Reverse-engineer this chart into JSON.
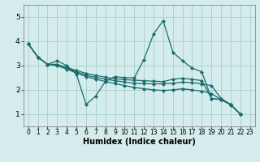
{
  "xlabel": "Humidex (Indice chaleur)",
  "bg_color": "#d4ecec",
  "grid_color": "#a8cccc",
  "line_color": "#1a6b6b",
  "xlim": [
    -0.5,
    23.5
  ],
  "ylim": [
    0.5,
    5.5
  ],
  "xticks": [
    0,
    1,
    2,
    3,
    4,
    5,
    6,
    7,
    8,
    9,
    10,
    11,
    12,
    13,
    14,
    15,
    16,
    17,
    18,
    19,
    20,
    21,
    22,
    23
  ],
  "yticks": [
    1,
    2,
    3,
    4,
    5
  ],
  "lines": [
    {
      "x": [
        0,
        1,
        2,
        3,
        4,
        5,
        6,
        7,
        8,
        9,
        10,
        11,
        12,
        13,
        14,
        15,
        16,
        17,
        18,
        19,
        20,
        21,
        22
      ],
      "y": [
        3.9,
        3.35,
        3.05,
        3.2,
        3.0,
        2.65,
        1.4,
        1.75,
        2.35,
        2.55,
        2.5,
        2.5,
        3.25,
        4.3,
        4.85,
        3.55,
        3.2,
        2.9,
        2.75,
        1.65,
        1.6,
        1.4,
        1.0
      ]
    },
    {
      "x": [
        0,
        1,
        2,
        3,
        4,
        5,
        6,
        7,
        8,
        9,
        10,
        11,
        12,
        13,
        14,
        15,
        16,
        17,
        18,
        19,
        20,
        21,
        22
      ],
      "y": [
        3.9,
        3.35,
        3.05,
        3.05,
        2.92,
        2.8,
        2.68,
        2.6,
        2.52,
        2.46,
        2.42,
        2.4,
        2.38,
        2.36,
        2.34,
        2.44,
        2.48,
        2.44,
        2.38,
        1.65,
        1.6,
        1.4,
        1.0
      ]
    },
    {
      "x": [
        0,
        1,
        2,
        3,
        4,
        5,
        6,
        7,
        8,
        9,
        10,
        11,
        12,
        13,
        14,
        15,
        16,
        17,
        18,
        19,
        20,
        21,
        22
      ],
      "y": [
        3.9,
        3.35,
        3.05,
        3.05,
        2.9,
        2.75,
        2.6,
        2.52,
        2.44,
        2.38,
        2.32,
        2.28,
        2.26,
        2.25,
        2.25,
        2.28,
        2.32,
        2.3,
        2.25,
        2.18,
        1.65,
        1.4,
        1.0
      ]
    },
    {
      "x": [
        0,
        1,
        2,
        3,
        4,
        5,
        6,
        7,
        8,
        9,
        10,
        11,
        12,
        13,
        14,
        15,
        16,
        17,
        18,
        19,
        20,
        21,
        22
      ],
      "y": [
        3.9,
        3.35,
        3.05,
        3.0,
        2.85,
        2.7,
        2.55,
        2.44,
        2.35,
        2.26,
        2.18,
        2.1,
        2.05,
        2.0,
        1.98,
        2.0,
        2.05,
        2.0,
        1.95,
        1.85,
        1.6,
        1.38,
        1.0
      ]
    }
  ]
}
